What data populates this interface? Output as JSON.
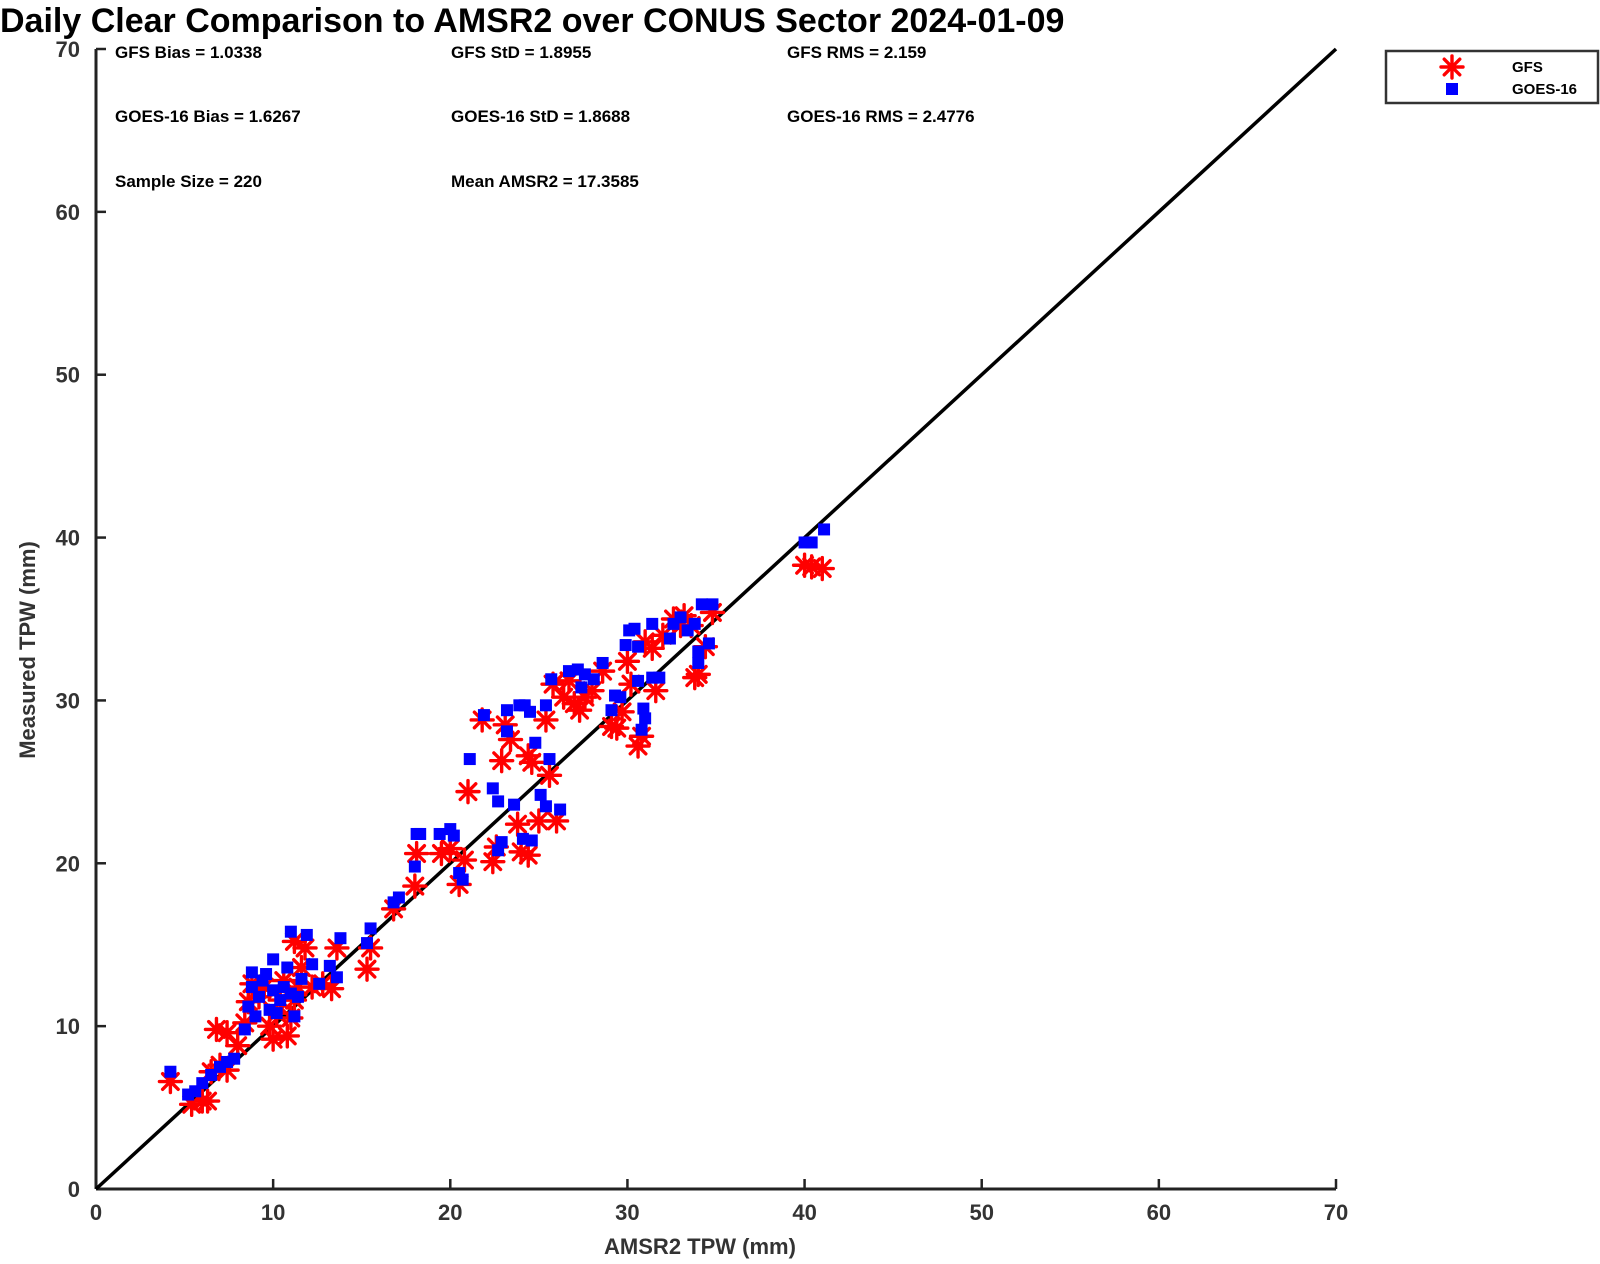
{
  "chart_data": {
    "type": "scatter",
    "title": "Daily Clear Comparison to AMSR2 over CONUS Sector 2024-01-09",
    "xlabel": "AMSR2 TPW (mm)",
    "ylabel": "Measured TPW (mm)",
    "xlim": [
      0,
      70
    ],
    "ylim": [
      0,
      70
    ],
    "xticks": [
      "0",
      "10",
      "20",
      "30",
      "40",
      "50",
      "60",
      "70"
    ],
    "yticks": [
      "0",
      "10",
      "20",
      "30",
      "40",
      "50",
      "60",
      "70"
    ],
    "grid": false,
    "legend_position": "outside-top-right",
    "reference_line": [
      [
        0,
        0
      ],
      [
        70,
        70
      ]
    ],
    "stats": [
      "GFS Bias = 1.0338",
      "GFS StD = 1.8955",
      "GFS RMS = 2.159",
      "GOES-16 Bias = 1.6267",
      "GOES-16 StD = 1.8688",
      "GOES-16 RMS = 2.4776",
      "Sample Size = 220",
      "Mean AMSR2 = 17.3585"
    ],
    "series": [
      {
        "name": "GFS",
        "marker": "asterisk",
        "color": "#ff0000",
        "points": [
          [
            4.2,
            6.6
          ],
          [
            5.4,
            5.2
          ],
          [
            6.0,
            5.4
          ],
          [
            6.3,
            5.4
          ],
          [
            6.5,
            7.2
          ],
          [
            7.0,
            7.6
          ],
          [
            7.4,
            7.3
          ],
          [
            6.8,
            9.8
          ],
          [
            7.4,
            9.6
          ],
          [
            8.0,
            8.8
          ],
          [
            8.4,
            10.2
          ],
          [
            8.6,
            11.5
          ],
          [
            8.8,
            12.6
          ],
          [
            9.2,
            11.8
          ],
          [
            9.5,
            12.4
          ],
          [
            9.8,
            10.0
          ],
          [
            10.0,
            9.2
          ],
          [
            10.2,
            10.8
          ],
          [
            10.4,
            11.6
          ],
          [
            10.6,
            12.8
          ],
          [
            10.8,
            9.4
          ],
          [
            11.0,
            10.5
          ],
          [
            11.2,
            11.6
          ],
          [
            11.4,
            12.4
          ],
          [
            11.6,
            13.6
          ],
          [
            11.2,
            15.2
          ],
          [
            11.8,
            14.8
          ],
          [
            12.2,
            12.4
          ],
          [
            12.8,
            12.6
          ],
          [
            13.3,
            12.3
          ],
          [
            13.6,
            14.8
          ],
          [
            15.3,
            13.5
          ],
          [
            15.5,
            14.8
          ],
          [
            16.8,
            17.2
          ],
          [
            18.0,
            18.6
          ],
          [
            18.1,
            20.6
          ],
          [
            19.5,
            20.6
          ],
          [
            20.0,
            20.9
          ],
          [
            20.5,
            18.7
          ],
          [
            20.8,
            20.2
          ],
          [
            21.0,
            24.4
          ],
          [
            21.8,
            28.8
          ],
          [
            22.4,
            20.1
          ],
          [
            22.6,
            21.0
          ],
          [
            22.9,
            26.3
          ],
          [
            23.1,
            28.5
          ],
          [
            23.4,
            27.6
          ],
          [
            23.8,
            22.4
          ],
          [
            24.0,
            20.7
          ],
          [
            24.4,
            20.5
          ],
          [
            24.4,
            26.6
          ],
          [
            24.6,
            26.2
          ],
          [
            25.0,
            22.6
          ],
          [
            25.4,
            28.8
          ],
          [
            25.6,
            25.4
          ],
          [
            26.0,
            22.6
          ],
          [
            25.8,
            31.0
          ],
          [
            26.4,
            30.2
          ],
          [
            26.7,
            31.2
          ],
          [
            27.0,
            29.8
          ],
          [
            27.3,
            29.4
          ],
          [
            27.6,
            30.2
          ],
          [
            28.0,
            30.6
          ],
          [
            28.6,
            31.8
          ],
          [
            29.1,
            28.4
          ],
          [
            29.4,
            28.3
          ],
          [
            29.7,
            29.3
          ],
          [
            30.0,
            32.4
          ],
          [
            30.2,
            31.0
          ],
          [
            30.6,
            27.2
          ],
          [
            30.8,
            27.8
          ],
          [
            31.0,
            33.6
          ],
          [
            31.4,
            33.2
          ],
          [
            31.6,
            30.6
          ],
          [
            32.0,
            34.0
          ],
          [
            32.6,
            35.0
          ],
          [
            33.0,
            34.6
          ],
          [
            33.2,
            35.2
          ],
          [
            33.6,
            34.6
          ],
          [
            33.8,
            31.4
          ],
          [
            34.0,
            31.6
          ],
          [
            34.4,
            33.3
          ],
          [
            34.8,
            35.4
          ],
          [
            40.0,
            38.3
          ],
          [
            40.4,
            38.2
          ],
          [
            41.0,
            38.1
          ]
        ]
      },
      {
        "name": "GOES-16",
        "marker": "square",
        "color": "#0000ff",
        "points": [
          [
            4.2,
            7.2
          ],
          [
            5.2,
            5.8
          ],
          [
            5.6,
            6.0
          ],
          [
            6.0,
            6.5
          ],
          [
            6.5,
            7.0
          ],
          [
            7.0,
            7.5
          ],
          [
            7.4,
            7.8
          ],
          [
            7.8,
            8.0
          ],
          [
            8.4,
            9.8
          ],
          [
            8.6,
            11.2
          ],
          [
            8.8,
            12.4
          ],
          [
            8.8,
            13.3
          ],
          [
            9.0,
            10.6
          ],
          [
            9.2,
            11.8
          ],
          [
            9.4,
            12.8
          ],
          [
            9.6,
            13.2
          ],
          [
            9.8,
            11.0
          ],
          [
            10.0,
            12.2
          ],
          [
            10.0,
            14.1
          ],
          [
            10.2,
            10.8
          ],
          [
            10.4,
            11.6
          ],
          [
            10.6,
            12.4
          ],
          [
            10.8,
            13.6
          ],
          [
            11.0,
            12.0
          ],
          [
            11.0,
            15.8
          ],
          [
            11.2,
            10.6
          ],
          [
            11.4,
            11.8
          ],
          [
            11.6,
            12.9
          ],
          [
            11.9,
            15.6
          ],
          [
            12.2,
            13.8
          ],
          [
            12.6,
            12.6
          ],
          [
            13.2,
            13.7
          ],
          [
            13.6,
            13.0
          ],
          [
            13.8,
            15.4
          ],
          [
            15.3,
            15.1
          ],
          [
            15.5,
            16.0
          ],
          [
            16.8,
            17.6
          ],
          [
            17.1,
            17.9
          ],
          [
            18.0,
            19.8
          ],
          [
            18.1,
            21.8
          ],
          [
            18.3,
            21.8
          ],
          [
            19.4,
            21.8
          ],
          [
            20.0,
            22.1
          ],
          [
            20.2,
            21.7
          ],
          [
            20.5,
            19.4
          ],
          [
            20.7,
            19.0
          ],
          [
            21.1,
            26.4
          ],
          [
            21.9,
            29.1
          ],
          [
            22.4,
            24.6
          ],
          [
            22.7,
            20.8
          ],
          [
            22.9,
            21.3
          ],
          [
            22.7,
            23.8
          ],
          [
            23.2,
            28.1
          ],
          [
            23.2,
            29.4
          ],
          [
            23.6,
            23.6
          ],
          [
            23.9,
            29.7
          ],
          [
            24.1,
            21.5
          ],
          [
            24.2,
            29.7
          ],
          [
            24.5,
            29.3
          ],
          [
            24.6,
            21.4
          ],
          [
            24.8,
            27.4
          ],
          [
            25.1,
            24.2
          ],
          [
            25.4,
            23.5
          ],
          [
            25.4,
            29.7
          ],
          [
            25.6,
            26.4
          ],
          [
            25.7,
            31.3
          ],
          [
            26.2,
            23.3
          ],
          [
            26.7,
            31.8
          ],
          [
            27.2,
            31.9
          ],
          [
            27.4,
            30.8
          ],
          [
            27.6,
            31.6
          ],
          [
            28.1,
            31.3
          ],
          [
            28.6,
            32.3
          ],
          [
            29.1,
            29.4
          ],
          [
            29.3,
            30.3
          ],
          [
            29.6,
            30.2
          ],
          [
            29.9,
            33.4
          ],
          [
            30.1,
            34.3
          ],
          [
            30.4,
            34.4
          ],
          [
            30.6,
            31.2
          ],
          [
            30.6,
            33.3
          ],
          [
            30.8,
            28.2
          ],
          [
            30.9,
            29.5
          ],
          [
            31.0,
            28.9
          ],
          [
            31.4,
            31.4
          ],
          [
            31.4,
            34.7
          ],
          [
            31.8,
            31.4
          ],
          [
            32.4,
            33.8
          ],
          [
            32.6,
            34.7
          ],
          [
            33.0,
            35.1
          ],
          [
            33.4,
            34.3
          ],
          [
            33.8,
            34.7
          ],
          [
            34.0,
            32.3
          ],
          [
            34.0,
            33.0
          ],
          [
            34.2,
            35.9
          ],
          [
            34.6,
            33.5
          ],
          [
            34.8,
            35.9
          ],
          [
            40.0,
            39.7
          ],
          [
            40.4,
            39.7
          ],
          [
            41.1,
            40.5
          ]
        ]
      }
    ]
  }
}
